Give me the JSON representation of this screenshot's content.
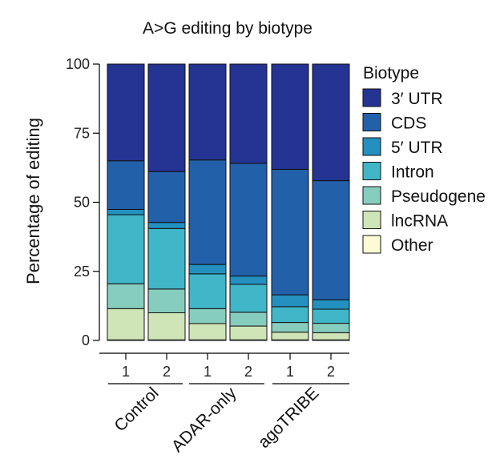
{
  "chart_data": {
    "type": "bar",
    "stacked": true,
    "title": "A>G editing by biotype",
    "ylabel": "Percentage of editing",
    "xlabel": "",
    "ylim": [
      0,
      100
    ],
    "yticks": [
      0,
      25,
      50,
      75,
      100
    ],
    "categories": [
      "1",
      "2",
      "1",
      "2",
      "1",
      "2"
    ],
    "groups": [
      {
        "label": "Control",
        "members": [
          0,
          1
        ]
      },
      {
        "label": "ADAR-only",
        "members": [
          2,
          3
        ]
      },
      {
        "label": "agoTRIBE",
        "members": [
          4,
          5
        ]
      }
    ],
    "legend_title": "Biotype",
    "legend_position": "right",
    "series": [
      {
        "name": "Other",
        "color": "#fdfbd3",
        "values": [
          0.2,
          0.2,
          0.2,
          0.2,
          0.2,
          0.2
        ]
      },
      {
        "name": "lncRNA",
        "color": "#cfe5b7",
        "values": [
          11.3,
          9.8,
          5.9,
          5.0,
          2.8,
          2.6
        ]
      },
      {
        "name": "Pseudogene",
        "color": "#87cdbd",
        "values": [
          9.0,
          8.6,
          5.4,
          5.0,
          3.5,
          3.4
        ]
      },
      {
        "name": "Intron",
        "color": "#41b6c8",
        "values": [
          25.0,
          21.9,
          12.6,
          10.1,
          5.7,
          5.1
        ]
      },
      {
        "name": "5′ UTR",
        "color": "#2390c0",
        "values": [
          1.9,
          2.2,
          3.4,
          3.0,
          4.3,
          3.4
        ]
      },
      {
        "name": "CDS",
        "color": "#2360aa",
        "values": [
          17.6,
          18.4,
          37.8,
          40.8,
          45.4,
          43.1
        ]
      },
      {
        "name": "3′ UTR",
        "color": "#253393",
        "values": [
          35.0,
          38.9,
          34.7,
          35.9,
          38.1,
          42.2
        ]
      }
    ]
  }
}
